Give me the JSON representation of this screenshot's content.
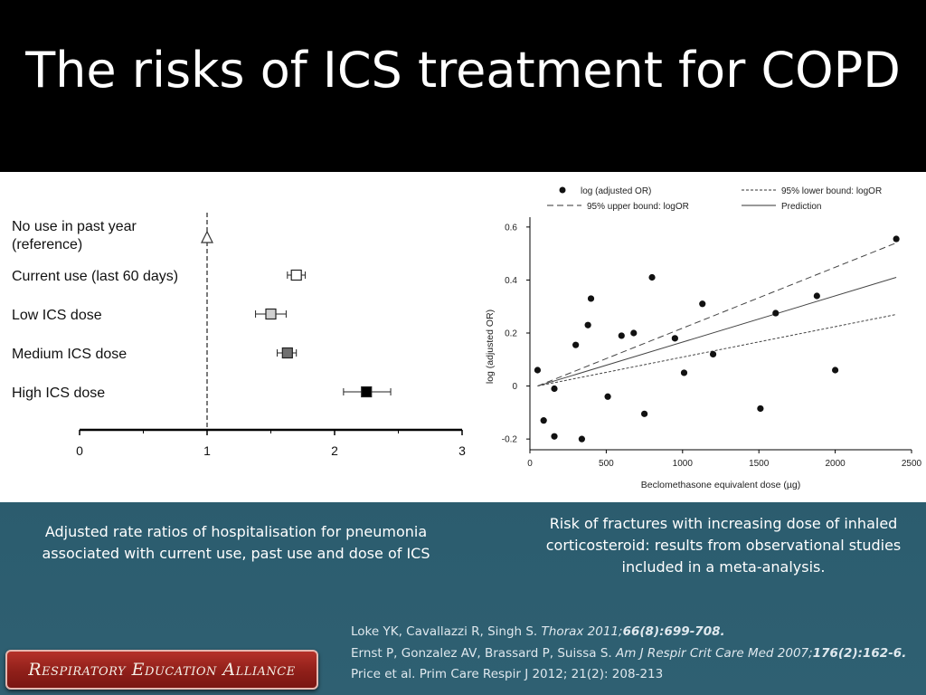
{
  "slide": {
    "title": "The risks of ICS treatment for COPD"
  },
  "captions": {
    "left": "Adjusted rate ratios of hospitalisation for pneumonia associated with current use, past use and dose of ICS",
    "right": "Risk of fractures with increasing dose of inhaled corticosteroid: results from observational studies included in a meta-analysis."
  },
  "references": [
    {
      "plain": "Loke YK, Cavallazzi R, Singh S. ",
      "italic": "Thorax 2011;",
      "bold_italic": "66(8):699-708."
    },
    {
      "plain": "Ernst P, Gonzalez  AV, Brassard P, Suissa S. ",
      "italic": "Am J Respir Crit Care Med 2007;",
      "bold_italic": "176(2):162-6."
    },
    {
      "plain": "Price et al. Prim Care Respir J 2012; 21(2): 208-213",
      "italic": "",
      "bold_italic": ""
    }
  ],
  "logo": {
    "text": "Respiratory Education Alliance"
  },
  "colors": {
    "header_bg": "#000000",
    "logo_red": "#a8271f",
    "panel_bg": "#1f4a5e"
  },
  "chart_data": [
    {
      "type": "scatter",
      "subtype": "forest-plot",
      "categories": [
        "No use in past year\n(reference)",
        "Current use (last 60 days)",
        "Low ICS dose",
        "Medium ICS dose",
        "High ICS dose"
      ],
      "category_lines": [
        [
          "No use in past year",
          "(reference)"
        ],
        [
          "Current use (last 60 days)"
        ],
        [
          "Low ICS dose"
        ],
        [
          "Medium ICS dose"
        ],
        [
          "High ICS dose"
        ]
      ],
      "values": [
        1.0,
        1.7,
        1.5,
        1.63,
        2.25
      ],
      "ci_low": [
        1.0,
        1.63,
        1.38,
        1.55,
        2.07
      ],
      "ci_high": [
        1.0,
        1.77,
        1.62,
        1.7,
        2.44
      ],
      "marker_fill": [
        "#ffffff",
        "#ffffff",
        "#d0d0d0",
        "#707070",
        "#000000"
      ],
      "marker_shape": [
        "triangle",
        "square",
        "square",
        "square",
        "square"
      ],
      "reference_line": 1,
      "xlim": [
        0,
        3
      ],
      "xticks": [
        "0",
        "1",
        "2",
        "3"
      ],
      "xlabel": "",
      "ylabel": "",
      "title": ""
    },
    {
      "type": "scatter",
      "legend_entries": [
        "log (adjusted OR)",
        "95% lower bound: logOR",
        "95% upper bound: logOR",
        "Prediction"
      ],
      "legend_position": "top",
      "xlabel": "Beclomethasone equivalent dose (µg)",
      "ylabel": "log (adjusted OR)",
      "xlim": [
        0,
        2500
      ],
      "ylim": [
        -0.22,
        0.62
      ],
      "xticks": [
        "0",
        "500",
        "1000",
        "1500",
        "2000",
        "2500"
      ],
      "yticks": [
        "-0.2",
        "0",
        "0.2",
        "0.4",
        "0.6"
      ],
      "points": {
        "x": [
          50,
          90,
          160,
          160,
          300,
          340,
          380,
          400,
          510,
          600,
          680,
          750,
          800,
          950,
          1010,
          1130,
          1200,
          1510,
          1610,
          1880,
          2000,
          2400
        ],
        "y": [
          0.06,
          -0.13,
          -0.01,
          -0.19,
          0.155,
          -0.2,
          0.23,
          0.33,
          -0.04,
          0.19,
          0.2,
          -0.105,
          0.41,
          0.18,
          0.05,
          0.31,
          0.12,
          -0.085,
          0.275,
          0.34,
          0.06,
          0.555
        ]
      },
      "prediction": {
        "x": [
          50,
          2400
        ],
        "y": [
          0.0,
          0.41
        ]
      },
      "upper_bound": {
        "x": [
          50,
          2400
        ],
        "y": [
          0.0,
          0.54
        ]
      },
      "lower_bound": {
        "x": [
          50,
          2400
        ],
        "y": [
          0.0,
          0.27
        ]
      },
      "title": ""
    }
  ]
}
